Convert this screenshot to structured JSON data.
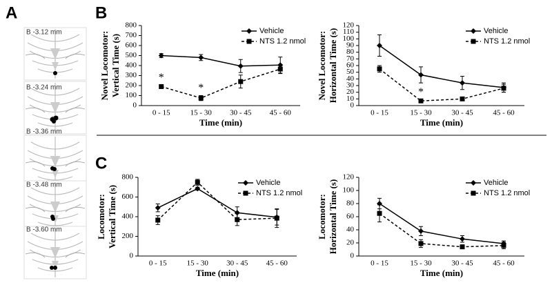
{
  "panels": [
    "A",
    "B",
    "C"
  ],
  "sections": [
    "B -3.12 mm",
    "B -3.24 mm",
    "B -3.36 mm",
    "B -3.48 mm",
    "B -3.60 mm"
  ],
  "chart_data": [
    {
      "type": "line",
      "ylabel": [
        "Novel Locomotor:",
        "Vertical Time (s)"
      ],
      "xlabel": "Time (min)",
      "categories": [
        "0 - 15",
        "15 - 30",
        "30 - 45",
        "45 - 60"
      ],
      "ylim": [
        0,
        800
      ],
      "yticks": [
        0,
        100,
        200,
        300,
        400,
        500,
        600,
        700,
        800
      ],
      "legend": "upper right",
      "series": [
        {
          "name": "Vehicle",
          "color": "#000000",
          "linestyle": "solid",
          "marker": "diamond",
          "values": [
            500,
            480,
            395,
            405
          ],
          "errors": [
            20,
            30,
            65,
            80
          ]
        },
        {
          "name": "NTS 1.2 nmol",
          "color": "#000000",
          "linestyle": "dashed",
          "marker": "square",
          "values": [
            190,
            75,
            240,
            365
          ],
          "errors": [
            15,
            25,
            65,
            45
          ]
        }
      ],
      "annotations": [
        {
          "text": "*",
          "category": "0 - 15",
          "series": "NTS 1.2 nmol"
        },
        {
          "text": "*",
          "category": "15 - 30",
          "series": "NTS 1.2 nmol"
        }
      ]
    },
    {
      "type": "line",
      "ylabel": [
        "Novel Locomotor:",
        "Horizontal Time (s)"
      ],
      "xlabel": "Time (min)",
      "categories": [
        "0 - 15",
        "15 - 30",
        "30 - 45",
        "45 - 60"
      ],
      "ylim": [
        0,
        120
      ],
      "yticks": [
        0,
        10,
        20,
        30,
        40,
        50,
        60,
        70,
        80,
        90,
        100,
        110,
        120
      ],
      "legend": "upper right",
      "series": [
        {
          "name": "Vehicle",
          "color": "#000000",
          "linestyle": "solid",
          "marker": "diamond",
          "values": [
            90,
            46,
            34,
            27
          ],
          "errors": [
            16,
            12,
            10,
            7
          ]
        },
        {
          "name": "NTS 1.2 nmol",
          "color": "#000000",
          "linestyle": "dashed",
          "marker": "square",
          "values": [
            55,
            7,
            10,
            26
          ],
          "errors": [
            5,
            2,
            2,
            6
          ]
        }
      ],
      "annotations": [
        {
          "text": "*",
          "category": "15 - 30",
          "series": "NTS 1.2 nmol"
        }
      ]
    },
    {
      "type": "line",
      "ylabel": [
        "Locomotor:",
        "Vertical Time (s)"
      ],
      "xlabel": "Time (min)",
      "categories": [
        "0 - 15",
        "15 - 30",
        "30 - 45",
        "45 - 60"
      ],
      "ylim": [
        0,
        800
      ],
      "yticks": [
        0,
        200,
        400,
        600,
        800
      ],
      "legend": "upper right",
      "series": [
        {
          "name": "Vehicle",
          "color": "#000000",
          "linestyle": "solid",
          "marker": "diamond",
          "values": [
            490,
            685,
            440,
            395
          ],
          "errors": [
            40,
            15,
            60,
            80
          ]
        },
        {
          "name": "NTS 1.2 nmol",
          "color": "#000000",
          "linestyle": "dashed",
          "marker": "square",
          "values": [
            365,
            750,
            370,
            385
          ],
          "errors": [
            45,
            30,
            60,
            95
          ]
        }
      ],
      "annotations": []
    },
    {
      "type": "line",
      "ylabel": [
        "Locomotor:",
        "Horizontal Time (s)"
      ],
      "xlabel": "Time (min)",
      "categories": [
        "0 - 15",
        "15 - 30",
        "30 - 45",
        "45 - 60"
      ],
      "ylim": [
        0,
        120
      ],
      "yticks": [
        0,
        20,
        40,
        60,
        80,
        100,
        120
      ],
      "legend": "upper right",
      "series": [
        {
          "name": "Vehicle",
          "color": "#000000",
          "linestyle": "solid",
          "marker": "diamond",
          "values": [
            80,
            38,
            26,
            19
          ],
          "errors": [
            8,
            7,
            5,
            4
          ]
        },
        {
          "name": "NTS 1.2 nmol",
          "color": "#000000",
          "linestyle": "dashed",
          "marker": "square",
          "values": [
            65,
            19,
            14,
            16
          ],
          "errors": [
            13,
            6,
            3,
            5
          ]
        }
      ],
      "annotations": []
    }
  ]
}
